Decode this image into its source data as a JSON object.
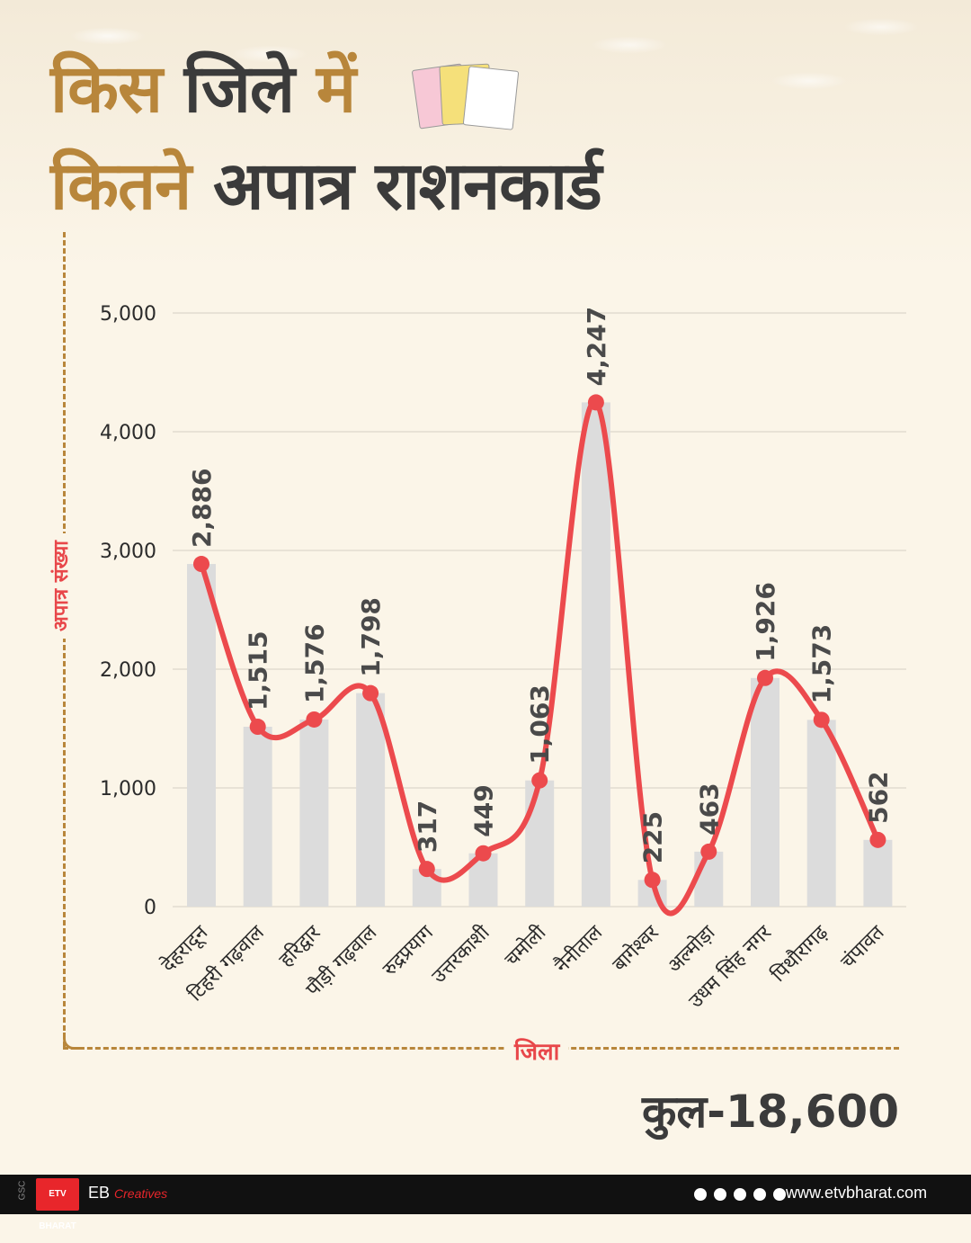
{
  "header": {
    "line1_part1": "किस",
    "line1_part2": "जिले",
    "line1_part3": "में",
    "line2_part1": "कितने",
    "line2_part2": "अपात्र राशनकार्ड"
  },
  "chart_data": {
    "type": "bar",
    "categories": [
      "देहरादून",
      "टिहरी गढ़वाल",
      "हरिद्वार",
      "पौड़ी गढ़वाल",
      "रुद्रप्रयाग",
      "उत्तरकाशी",
      "चमोली",
      "नैनीताल",
      "बागेश्वर",
      "अल्मोड़ा",
      "उधम सिंह नगर",
      "पिथौरागढ़",
      "चंपावत"
    ],
    "values": [
      2886,
      1515,
      1576,
      1798,
      317,
      449,
      1063,
      4247,
      225,
      463,
      1926,
      1573,
      562
    ],
    "data_labels": [
      "2,886",
      "1,515",
      "1,576",
      "1,798",
      "317",
      "449",
      "1,063",
      "4,247",
      "225",
      "463",
      "1,926",
      "1,573",
      "562"
    ],
    "overlay": "smooth-line",
    "ylim": [
      0,
      5000
    ],
    "yticks": [
      0,
      1000,
      2000,
      3000,
      4000,
      5000
    ],
    "ytick_labels": [
      "0",
      "1,000",
      "2,000",
      "3,000",
      "4,000",
      "5,000"
    ],
    "xlabel": "जिला",
    "ylabel": "अपात्र संख्या",
    "grid": true,
    "bar_color": "#dcdcdc",
    "line_color": "#ec4a4d"
  },
  "total": "कुल-18,600",
  "footer": {
    "gsc": "GSC",
    "etv": "ETV BHARAT",
    "eb": "EB",
    "creatives": "Creatives",
    "website": "www.etvbharat.com"
  },
  "colors": {
    "gold": "#b8863b",
    "dark": "#3b3b3b",
    "accent": "#e8474a",
    "background": "#fbf5e8"
  }
}
